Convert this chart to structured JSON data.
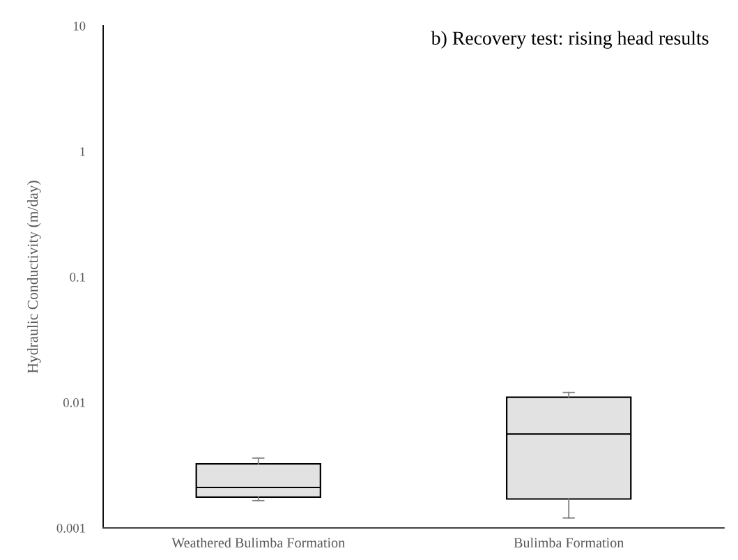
{
  "chart_data": {
    "type": "box",
    "title": "b) Recovery test: rising head results",
    "ylabel": "Hydraulic Conductivity (m/day)",
    "categories": [
      "Weathered Bulimba Formation",
      "Bulimba Formation"
    ],
    "boxes": [
      {
        "low": 0.00165,
        "q1": 0.00176,
        "median": 0.0021,
        "q3": 0.00324,
        "high": 0.0036
      },
      {
        "low": 0.0012,
        "q1": 0.0017,
        "median": 0.0056,
        "q3": 0.011,
        "high": 0.012
      }
    ],
    "color": "#e2e2e2",
    "log": true,
    "ylim": [
      0.001,
      10
    ],
    "yticks": [
      0.001,
      0.01,
      0.1,
      1,
      10
    ],
    "grid": false
  }
}
